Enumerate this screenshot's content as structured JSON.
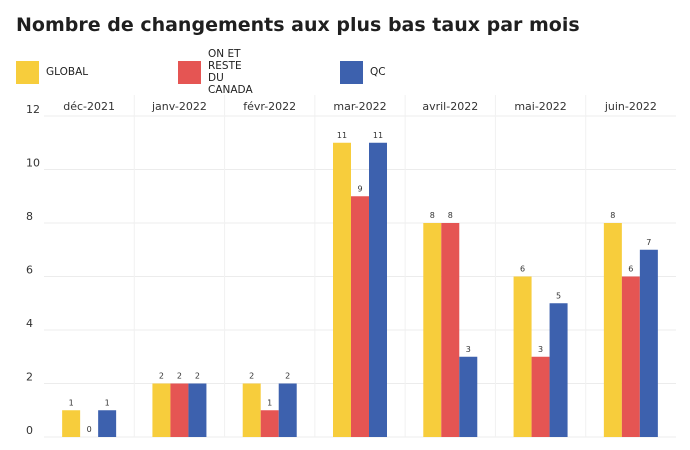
{
  "chart_data": {
    "type": "bar",
    "title": "Nombre de changements aux plus bas taux par mois",
    "xlabel": "",
    "ylabel": "",
    "categories": [
      "déc-2021",
      "janv-2022",
      "févr-2022",
      "mar-2022",
      "avril-2022",
      "mai-2022",
      "juin-2022"
    ],
    "series": [
      {
        "name": "GLOBAL",
        "color": "#F7CD3C",
        "values": [
          1,
          2,
          2,
          11,
          8,
          6,
          8
        ]
      },
      {
        "name": "ON ET RESTE DU CANADA",
        "color": "#E55553",
        "values": [
          0,
          2,
          1,
          9,
          8,
          3,
          6
        ]
      },
      {
        "name": "QC",
        "color": "#3D61AE",
        "values": [
          1,
          2,
          2,
          11,
          3,
          5,
          7
        ]
      }
    ],
    "ylim": [
      0,
      12
    ],
    "yticks": [
      0,
      2,
      4,
      6,
      8,
      10,
      12
    ],
    "grid": true,
    "legend_position": "top-left",
    "category_labels_position": "top"
  }
}
